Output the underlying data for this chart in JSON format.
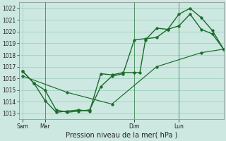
{
  "background_color": "#cce8e0",
  "grid_color": "#99ccbb",
  "line_color": "#1a6b2a",
  "title": "Pression niveau de la mer( hPa )",
  "ylim": [
    1012.5,
    1022.5
  ],
  "yticks": [
    1013,
    1014,
    1015,
    1016,
    1017,
    1018,
    1019,
    1020,
    1021,
    1022
  ],
  "x_tick_labels": [
    "Sam",
    "Mar",
    "Dim",
    "Lun"
  ],
  "x_tick_positions": [
    0,
    12,
    60,
    84
  ],
  "vlines_x": [
    12,
    60,
    84
  ],
  "xlim": [
    -2,
    108
  ],
  "series1_x": [
    0,
    6,
    12,
    18,
    24,
    30,
    36,
    42,
    48,
    54,
    60,
    66,
    72,
    78,
    84,
    90,
    96,
    102,
    108
  ],
  "series1_y": [
    1016.6,
    1015.6,
    1015.0,
    1013.3,
    1013.1,
    1013.2,
    1013.3,
    1015.3,
    1016.2,
    1016.4,
    1019.3,
    1019.4,
    1019.5,
    1020.2,
    1021.5,
    1022.0,
    1021.2,
    1020.1,
    1018.5
  ],
  "series2_x": [
    0,
    6,
    12,
    18,
    24,
    30,
    36,
    42,
    48,
    54,
    60,
    63,
    66,
    72,
    78,
    84,
    90,
    96,
    102,
    108
  ],
  "series2_y": [
    1016.6,
    1015.6,
    1014.1,
    1013.1,
    1013.2,
    1013.3,
    1013.2,
    1016.4,
    1016.3,
    1016.5,
    1016.5,
    1016.5,
    1019.3,
    1020.3,
    1020.2,
    1020.5,
    1021.5,
    1020.2,
    1019.8,
    1018.5
  ],
  "series3_x": [
    0,
    24,
    48,
    72,
    96,
    108
  ],
  "series3_y": [
    1016.2,
    1014.8,
    1013.8,
    1017.0,
    1018.2,
    1018.5
  ],
  "marker_size": 2.5,
  "linewidth": 1.0,
  "tick_fontsize": 5.5,
  "xlabel_fontsize": 7
}
